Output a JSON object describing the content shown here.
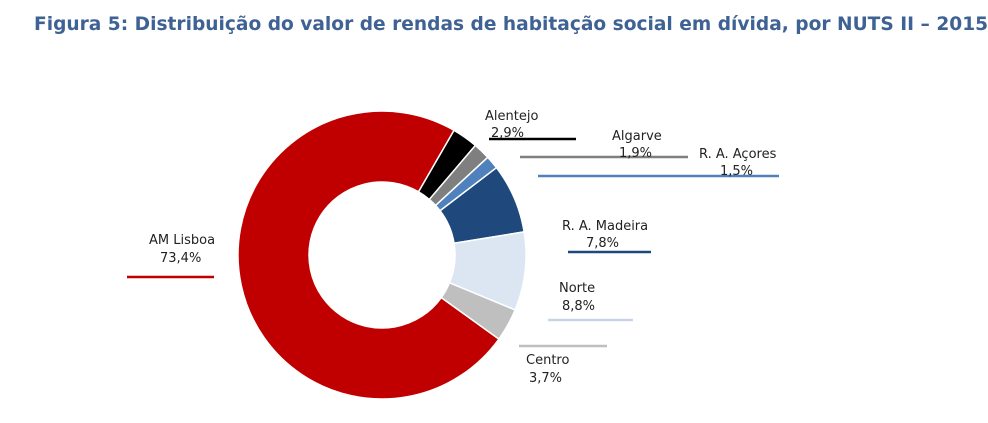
{
  "title": "Figura 5: Distribuição do valor de rendas de habitação social em dívida, por NUTS II – 2015",
  "chart_data": {
    "type": "pie",
    "donut": true,
    "title": "Figura 5: Distribuição do valor de rendas de habitação social em dívida, por NUTS II – 2015",
    "slices": [
      {
        "name": "Alentejo",
        "value": 2.9,
        "label": "2,9%",
        "color": "#000000"
      },
      {
        "name": "Algarve",
        "value": 1.9,
        "label": "1,9%",
        "color": "#7f7f7f"
      },
      {
        "name": "R. A. Açores",
        "value": 1.5,
        "label": "1,5%",
        "color": "#4f81bd"
      },
      {
        "name": "R. A. Madeira",
        "value": 7.8,
        "label": "7,8%",
        "color": "#1f497d"
      },
      {
        "name": "Norte",
        "value": 8.8,
        "label": "8,8%",
        "color": "#dce6f2"
      },
      {
        "name": "Centro",
        "value": 3.7,
        "label": "3,7%",
        "color": "#bfbfbf"
      },
      {
        "name": "AM Lisboa",
        "value": 73.4,
        "label": "73,4%",
        "color": "#c00000"
      }
    ],
    "legend": "none"
  }
}
